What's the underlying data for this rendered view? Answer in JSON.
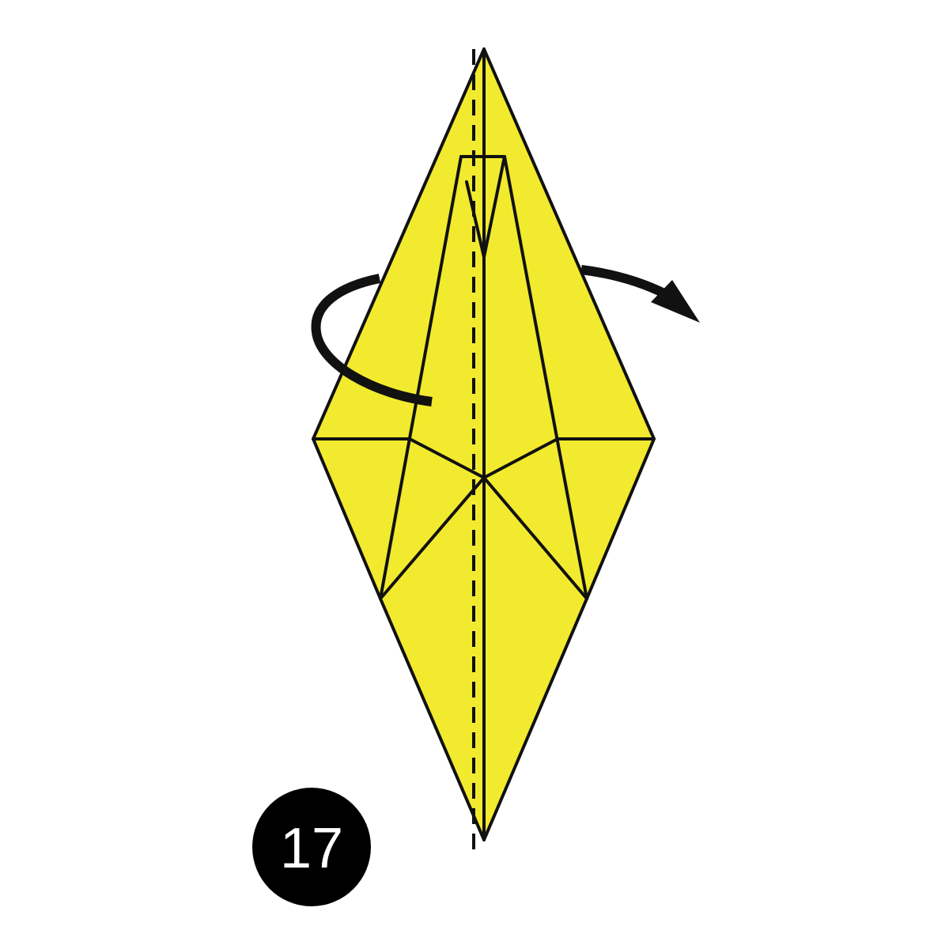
{
  "diagram": {
    "step_number": "17",
    "colors": {
      "paper_fill": "#F2EA2E",
      "line": "#111111",
      "background": "#FFFFFF",
      "badge_fill": "#000000",
      "badge_text": "#FFFFFF"
    },
    "symbols": {
      "fold_line": "valley-fold-dashed-line",
      "arrow": "turn-over-arrow-icon"
    }
  }
}
